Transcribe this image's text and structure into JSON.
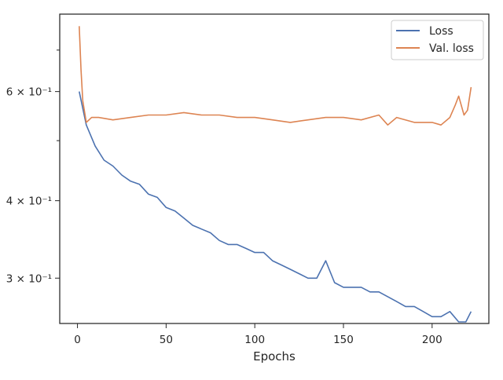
{
  "chart_data": {
    "type": "line",
    "xlabel": "Epochs",
    "ylabel": "",
    "title": "",
    "y_scale": "log",
    "xlim": [
      -10,
      232
    ],
    "ylim": [
      0.2535,
      0.8
    ],
    "x_ticks": [
      0,
      50,
      100,
      150,
      200
    ],
    "x_tick_labels": [
      "0",
      "50",
      "100",
      "150",
      "200"
    ],
    "y_major_ticks": [
      0.3,
      0.4,
      0.6
    ],
    "y_major_tick_labels": [
      "3 × 10⁻¹",
      "4 × 10⁻¹",
      "6 × 10⁻¹"
    ],
    "y_minor_ticks": [
      0.5,
      0.7
    ],
    "grid": false,
    "legend_position": "top-right",
    "series": [
      {
        "name": "Loss",
        "color": "#4c72b0",
        "x": [
          1,
          5,
          10,
          15,
          20,
          25,
          30,
          35,
          40,
          45,
          50,
          55,
          60,
          65,
          70,
          75,
          80,
          85,
          90,
          95,
          100,
          105,
          110,
          115,
          120,
          125,
          130,
          135,
          140,
          145,
          150,
          155,
          160,
          165,
          170,
          175,
          180,
          185,
          190,
          195,
          200,
          205,
          210,
          215,
          219,
          222
        ],
        "values": [
          0.6,
          0.53,
          0.49,
          0.465,
          0.455,
          0.44,
          0.43,
          0.425,
          0.41,
          0.405,
          0.39,
          0.385,
          0.375,
          0.365,
          0.36,
          0.355,
          0.345,
          0.34,
          0.34,
          0.335,
          0.33,
          0.33,
          0.32,
          0.315,
          0.31,
          0.305,
          0.3,
          0.3,
          0.32,
          0.295,
          0.29,
          0.29,
          0.29,
          0.285,
          0.285,
          0.28,
          0.275,
          0.27,
          0.27,
          0.265,
          0.26,
          0.26,
          0.265,
          0.255,
          0.255,
          0.265
        ]
      },
      {
        "name": "Val. loss",
        "color": "#dd8452",
        "x": [
          1,
          2,
          3,
          5,
          8,
          12,
          20,
          30,
          40,
          50,
          60,
          70,
          80,
          90,
          100,
          110,
          120,
          130,
          140,
          150,
          160,
          170,
          175,
          180,
          190,
          200,
          205,
          210,
          213,
          215,
          218,
          220,
          222
        ],
        "values": [
          0.765,
          0.65,
          0.58,
          0.535,
          0.545,
          0.545,
          0.54,
          0.545,
          0.55,
          0.55,
          0.555,
          0.55,
          0.55,
          0.545,
          0.545,
          0.54,
          0.535,
          0.54,
          0.545,
          0.545,
          0.54,
          0.55,
          0.53,
          0.545,
          0.535,
          0.535,
          0.53,
          0.545,
          0.57,
          0.59,
          0.55,
          0.56,
          0.61
        ]
      }
    ]
  }
}
